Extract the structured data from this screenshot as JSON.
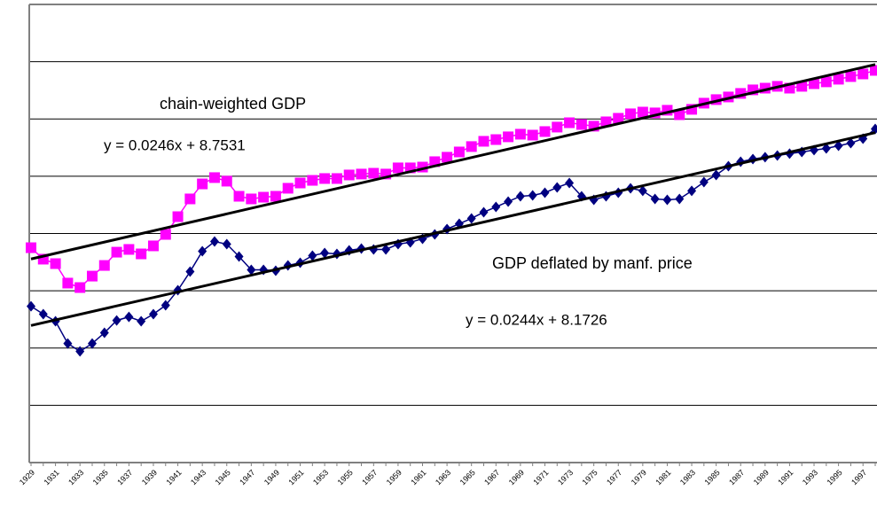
{
  "chart_data": {
    "type": "line",
    "categories": [
      "1929",
      null,
      "1931",
      null,
      "1933",
      null,
      "1935",
      null,
      "1937",
      null,
      "1939",
      null,
      "1941",
      null,
      "1943",
      null,
      "1945",
      null,
      "1947",
      null,
      "1949",
      null,
      "1951",
      null,
      "1953",
      null,
      "1955",
      null,
      "1957",
      null,
      "1959",
      null,
      "1961",
      null,
      "1963",
      null,
      "1965",
      null,
      "1967",
      null,
      "1969",
      null,
      "1971",
      null,
      "1973",
      null,
      "1975",
      null,
      "1977",
      null,
      "1979",
      null,
      "1981",
      null,
      "1983",
      null,
      "1985",
      null,
      "1987",
      null,
      "1989",
      null,
      "1991",
      null,
      "1993",
      null,
      "1995",
      null,
      "1997",
      null
    ],
    "series": [
      {
        "name": "chain-weighted GDP",
        "color": "#ff00ff",
        "marker": "square",
        "values": [
          8.876,
          8.776,
          8.737,
          8.567,
          8.528,
          8.628,
          8.721,
          8.837,
          8.861,
          8.822,
          8.892,
          8.992,
          9.147,
          9.302,
          9.433,
          9.488,
          9.457,
          9.325,
          9.302,
          9.317,
          9.325,
          9.395,
          9.441,
          9.464,
          9.48,
          9.48,
          9.511,
          9.519,
          9.526,
          9.519,
          9.573,
          9.573,
          9.58,
          9.627,
          9.666,
          9.712,
          9.759,
          9.805,
          9.82,
          9.844,
          9.867,
          9.859,
          9.89,
          9.929,
          9.967,
          9.952,
          9.937,
          9.975,
          10.006,
          10.045,
          10.06,
          10.053,
          10.076,
          10.037,
          10.084,
          10.138,
          10.169,
          10.192,
          10.223,
          10.254,
          10.269,
          10.285,
          10.269,
          10.285,
          10.308,
          10.324,
          10.347,
          10.37,
          10.393,
          10.424
        ]
      },
      {
        "name": "GDP deflated by manf. price",
        "color": "#000080",
        "marker": "diamond",
        "values": [
          8.365,
          8.296,
          8.234,
          8.04,
          7.971,
          8.04,
          8.133,
          8.241,
          8.272,
          8.234,
          8.296,
          8.373,
          8.505,
          8.667,
          8.845,
          8.93,
          8.907,
          8.799,
          8.683,
          8.683,
          8.675,
          8.721,
          8.745,
          8.807,
          8.83,
          8.822,
          8.853,
          8.868,
          8.861,
          8.861,
          8.907,
          8.923,
          8.954,
          8.992,
          9.039,
          9.085,
          9.132,
          9.186,
          9.232,
          9.279,
          9.325,
          9.333,
          9.356,
          9.402,
          9.441,
          9.325,
          9.294,
          9.325,
          9.356,
          9.395,
          9.372,
          9.302,
          9.294,
          9.302,
          9.372,
          9.449,
          9.511,
          9.588,
          9.627,
          9.65,
          9.666,
          9.681,
          9.697,
          9.712,
          9.728,
          9.743,
          9.766,
          9.789,
          9.828,
          9.913
        ]
      }
    ],
    "trendlines": [
      {
        "series": 0,
        "slope": 0.0246,
        "intercept": 8.7531,
        "label": "y = 0.0246x + 8.7531",
        "color": "#000000"
      },
      {
        "series": 1,
        "slope": 0.0244,
        "intercept": 8.1726,
        "label": "y = 0.0244x + 8.1726",
        "color": "#000000"
      }
    ],
    "ylim": [
      7,
      11
    ],
    "yticks": [
      7,
      7.5,
      8,
      8.5,
      9,
      9.5,
      10,
      10.5,
      11
    ],
    "grid": true
  }
}
